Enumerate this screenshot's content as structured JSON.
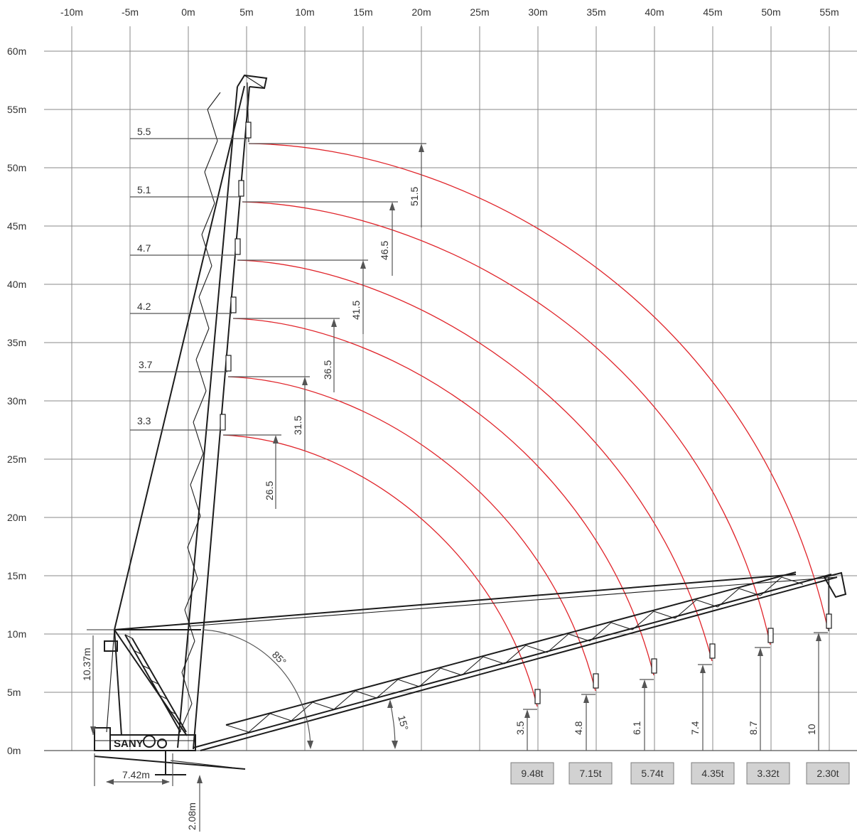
{
  "x_axis_labels": [
    "-10m",
    "-5m",
    "0m",
    "5m",
    "10m",
    "15m",
    "20m",
    "25m",
    "30m",
    "35m",
    "40m",
    "45m",
    "50m",
    "55m"
  ],
  "y_axis_labels": [
    "0m",
    "5m",
    "10m",
    "15m",
    "20m",
    "25m",
    "30m",
    "35m",
    "40m",
    "45m",
    "50m",
    "55m",
    "60m"
  ],
  "hook_positions": [
    {
      "label": "5.5",
      "height": "51.5"
    },
    {
      "label": "5.1",
      "height": "46.5"
    },
    {
      "label": "4.7",
      "height": "41.5"
    },
    {
      "label": "4.2",
      "height": "36.5"
    },
    {
      "label": "3.7",
      "height": "31.5"
    },
    {
      "label": "3.3",
      "height": "26.5"
    }
  ],
  "ground_heights": [
    "3.5",
    "4.8",
    "6.1",
    "7.4",
    "8.7",
    "10"
  ],
  "loads": [
    "9.48t",
    "7.15t",
    "5.74t",
    "4.35t",
    "3.32t",
    "2.30t"
  ],
  "angles": {
    "upper": "85°",
    "lower": "15°"
  },
  "dimensions": {
    "pivot_height": "10.37m",
    "base_width": "7.42m",
    "pivot_offset": "2.08m"
  },
  "brand": "SANY",
  "colors": {
    "arc": "#e0242a",
    "grid": "#8a8a8a",
    "structure": "#1c1c1c",
    "load_box": "#d2d2d2"
  }
}
